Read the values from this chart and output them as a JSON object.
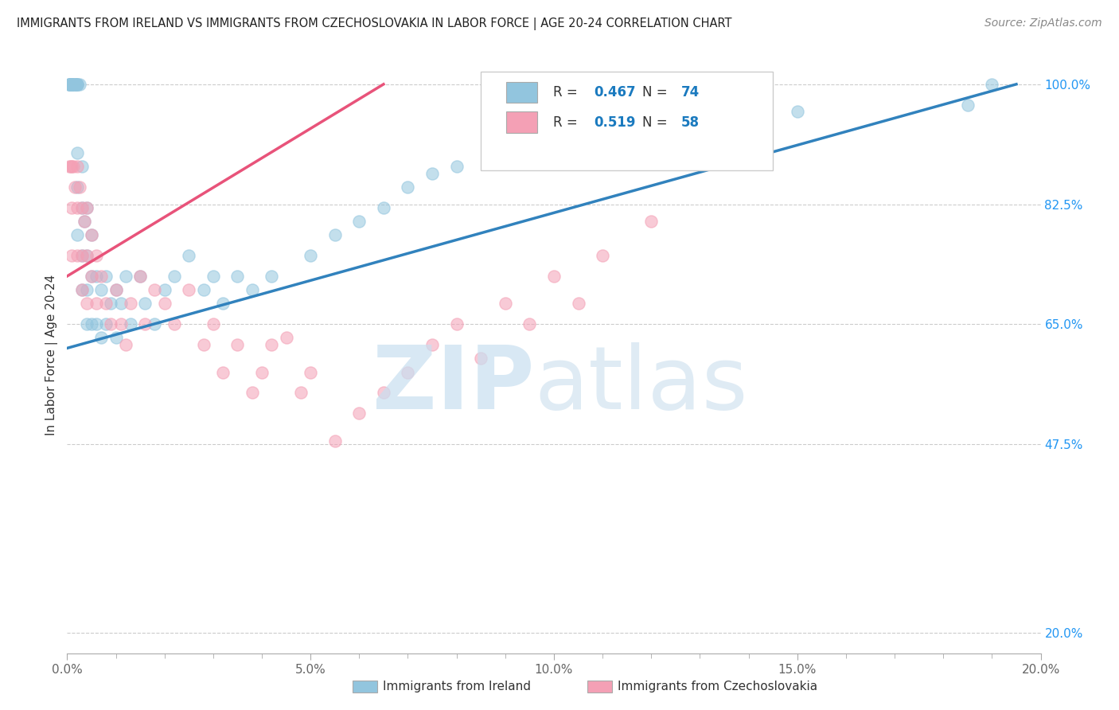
{
  "title": "IMMIGRANTS FROM IRELAND VS IMMIGRANTS FROM CZECHOSLOVAKIA IN LABOR FORCE | AGE 20-24 CORRELATION CHART",
  "source": "Source: ZipAtlas.com",
  "ylabel": "In Labor Force | Age 20-24",
  "xlim": [
    0.0,
    0.2
  ],
  "ylim": [
    0.17,
    1.04
  ],
  "xtick_labels": [
    "0.0%",
    "",
    "",
    "",
    "",
    "5.0%",
    "",
    "",
    "",
    "",
    "10.0%",
    "",
    "",
    "",
    "",
    "15.0%",
    "",
    "",
    "",
    "",
    "20.0%"
  ],
  "xtick_values": [
    0.0,
    0.01,
    0.02,
    0.03,
    0.04,
    0.05,
    0.06,
    0.07,
    0.08,
    0.09,
    0.1,
    0.11,
    0.12,
    0.13,
    0.14,
    0.15,
    0.16,
    0.17,
    0.18,
    0.19,
    0.2
  ],
  "xtick_major_labels": [
    "0.0%",
    "5.0%",
    "10.0%",
    "15.0%",
    "20.0%"
  ],
  "xtick_major_values": [
    0.0,
    0.05,
    0.1,
    0.15,
    0.2
  ],
  "ytick_labels_right": [
    "100.0%",
    "82.5%",
    "65.0%",
    "47.5%",
    "20.0%"
  ],
  "ytick_values_right": [
    1.0,
    0.825,
    0.65,
    0.475,
    0.2
  ],
  "ireland_color": "#92c5de",
  "czech_color": "#f4a0b5",
  "ireland_line_color": "#3182bd",
  "czech_line_color": "#e8537a",
  "ireland_R": 0.467,
  "ireland_N": 74,
  "czech_R": 0.519,
  "czech_N": 58,
  "ireland_x": [
    0.0005,
    0.0005,
    0.0005,
    0.0006,
    0.0007,
    0.0008,
    0.0009,
    0.001,
    0.001,
    0.001,
    0.001,
    0.001,
    0.001,
    0.0015,
    0.0015,
    0.0015,
    0.0018,
    0.002,
    0.002,
    0.002,
    0.002,
    0.002,
    0.002,
    0.0025,
    0.003,
    0.003,
    0.003,
    0.003,
    0.0035,
    0.004,
    0.004,
    0.004,
    0.004,
    0.005,
    0.005,
    0.005,
    0.006,
    0.006,
    0.007,
    0.007,
    0.008,
    0.008,
    0.009,
    0.01,
    0.01,
    0.011,
    0.012,
    0.013,
    0.015,
    0.016,
    0.018,
    0.02,
    0.022,
    0.025,
    0.028,
    0.03,
    0.032,
    0.035,
    0.038,
    0.042,
    0.05,
    0.055,
    0.06,
    0.065,
    0.07,
    0.075,
    0.08,
    0.09,
    0.1,
    0.11,
    0.13,
    0.15,
    0.185,
    0.19
  ],
  "ireland_y": [
    1.0,
    1.0,
    1.0,
    1.0,
    1.0,
    1.0,
    1.0,
    1.0,
    1.0,
    1.0,
    1.0,
    1.0,
    1.0,
    1.0,
    1.0,
    1.0,
    1.0,
    1.0,
    1.0,
    1.0,
    0.9,
    0.85,
    0.78,
    1.0,
    0.88,
    0.82,
    0.75,
    0.7,
    0.8,
    0.82,
    0.75,
    0.7,
    0.65,
    0.78,
    0.72,
    0.65,
    0.72,
    0.65,
    0.7,
    0.63,
    0.72,
    0.65,
    0.68,
    0.7,
    0.63,
    0.68,
    0.72,
    0.65,
    0.72,
    0.68,
    0.65,
    0.7,
    0.72,
    0.75,
    0.7,
    0.72,
    0.68,
    0.72,
    0.7,
    0.72,
    0.75,
    0.78,
    0.8,
    0.82,
    0.85,
    0.87,
    0.88,
    0.9,
    0.92,
    0.94,
    0.95,
    0.96,
    0.97,
    1.0
  ],
  "czech_x": [
    0.0005,
    0.0007,
    0.001,
    0.001,
    0.001,
    0.0012,
    0.0015,
    0.002,
    0.002,
    0.002,
    0.0025,
    0.003,
    0.003,
    0.003,
    0.0035,
    0.004,
    0.004,
    0.004,
    0.005,
    0.005,
    0.006,
    0.006,
    0.007,
    0.008,
    0.009,
    0.01,
    0.011,
    0.012,
    0.013,
    0.015,
    0.016,
    0.018,
    0.02,
    0.022,
    0.025,
    0.028,
    0.03,
    0.032,
    0.035,
    0.038,
    0.04,
    0.042,
    0.045,
    0.048,
    0.05,
    0.055,
    0.06,
    0.065,
    0.07,
    0.075,
    0.08,
    0.085,
    0.09,
    0.095,
    0.1,
    0.105,
    0.11,
    0.12
  ],
  "czech_y": [
    0.88,
    0.88,
    0.88,
    0.82,
    0.75,
    0.88,
    0.85,
    0.88,
    0.82,
    0.75,
    0.85,
    0.82,
    0.75,
    0.7,
    0.8,
    0.82,
    0.75,
    0.68,
    0.78,
    0.72,
    0.75,
    0.68,
    0.72,
    0.68,
    0.65,
    0.7,
    0.65,
    0.62,
    0.68,
    0.72,
    0.65,
    0.7,
    0.68,
    0.65,
    0.7,
    0.62,
    0.65,
    0.58,
    0.62,
    0.55,
    0.58,
    0.62,
    0.63,
    0.55,
    0.58,
    0.48,
    0.52,
    0.55,
    0.58,
    0.62,
    0.65,
    0.6,
    0.68,
    0.65,
    0.72,
    0.68,
    0.75,
    0.8
  ],
  "blue_line_x0": 0.0,
  "blue_line_y0": 0.615,
  "blue_line_x1": 0.195,
  "blue_line_y1": 1.0,
  "pink_line_x0": 0.0,
  "pink_line_y0": 0.72,
  "pink_line_x1": 0.065,
  "pink_line_y1": 1.0
}
